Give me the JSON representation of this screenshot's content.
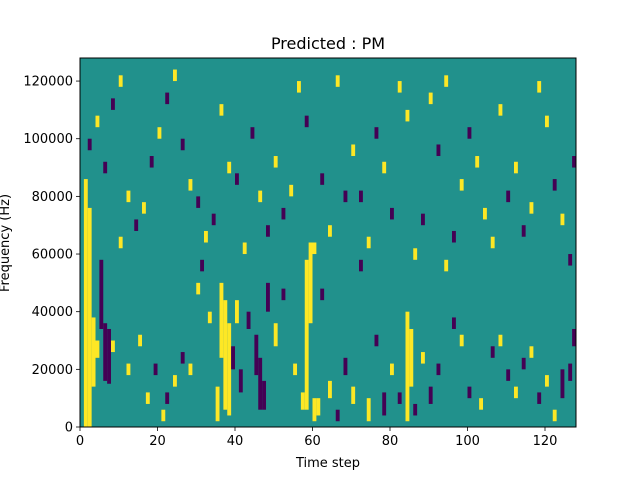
{
  "chart_data": {
    "type": "heatmap",
    "title": "Predicted : PM",
    "xlabel": "Time step",
    "ylabel": "Frequency (Hz)",
    "xlim": [
      0,
      128
    ],
    "ylim": [
      0,
      128000
    ],
    "x_ticks": [
      0,
      20,
      40,
      60,
      80,
      100,
      120
    ],
    "y_ticks": [
      0,
      20000,
      40000,
      60000,
      80000,
      100000,
      120000
    ],
    "x_tick_labels": [
      "0",
      "20",
      "40",
      "60",
      "80",
      "100",
      "120"
    ],
    "y_tick_labels": [
      "0",
      "20000",
      "40000",
      "60000",
      "80000",
      "100000",
      "120000"
    ],
    "colormap": "viridis",
    "levels": [
      -1,
      0,
      1
    ],
    "level_colors": {
      "-1": "#440154",
      "0": "#21918c",
      "1": "#fde725"
    },
    "background_level": 0,
    "grid": false,
    "cells": [
      {
        "t": 1,
        "f0": 0,
        "f1": 86000,
        "v": 1
      },
      {
        "t": 2,
        "f0": 0,
        "f1": 76000,
        "v": 1
      },
      {
        "t": 3,
        "f0": 14000,
        "f1": 38000,
        "v": 1
      },
      {
        "t": 4,
        "f0": 24000,
        "f1": 30000,
        "v": 1
      },
      {
        "t": 5,
        "f0": 34000,
        "f1": 58000,
        "v": -1
      },
      {
        "t": 6,
        "f0": 16000,
        "f1": 36000,
        "v": -1
      },
      {
        "t": 7,
        "f0": 15000,
        "f1": 34000,
        "v": -1
      },
      {
        "t": 8,
        "f0": 26000,
        "f1": 30000,
        "v": 1
      },
      {
        "t": 10,
        "f0": 62000,
        "f1": 66000,
        "v": 1
      },
      {
        "t": 12,
        "f0": 18000,
        "f1": 22000,
        "v": 1
      },
      {
        "t": 15,
        "f0": 28000,
        "f1": 32000,
        "v": 1
      },
      {
        "t": 17,
        "f0": 8000,
        "f1": 12000,
        "v": 1
      },
      {
        "t": 19,
        "f0": 18000,
        "f1": 22000,
        "v": -1
      },
      {
        "t": 21,
        "f0": 2000,
        "f1": 6000,
        "v": 1
      },
      {
        "t": 22,
        "f0": 8000,
        "f1": 12000,
        "v": -1
      },
      {
        "t": 24,
        "f0": 14000,
        "f1": 18000,
        "v": 1
      },
      {
        "t": 26,
        "f0": 22000,
        "f1": 26000,
        "v": -1
      },
      {
        "t": 28,
        "f0": 18000,
        "f1": 22000,
        "v": 1
      },
      {
        "t": 30,
        "f0": 46000,
        "f1": 50000,
        "v": 1
      },
      {
        "t": 31,
        "f0": 54000,
        "f1": 58000,
        "v": -1
      },
      {
        "t": 33,
        "f0": 36000,
        "f1": 40000,
        "v": 1
      },
      {
        "t": 35,
        "f0": 2000,
        "f1": 14000,
        "v": 1
      },
      {
        "t": 36,
        "f0": 24000,
        "f1": 50000,
        "v": 1
      },
      {
        "t": 37,
        "f0": 6000,
        "f1": 44000,
        "v": 1
      },
      {
        "t": 38,
        "f0": 4000,
        "f1": 36000,
        "v": 1
      },
      {
        "t": 39,
        "f0": 20000,
        "f1": 28000,
        "v": -1
      },
      {
        "t": 40,
        "f0": 36000,
        "f1": 44000,
        "v": 1
      },
      {
        "t": 41,
        "f0": 12000,
        "f1": 20000,
        "v": -1
      },
      {
        "t": 43,
        "f0": 34000,
        "f1": 40000,
        "v": -1
      },
      {
        "t": 45,
        "f0": 18000,
        "f1": 32000,
        "v": -1
      },
      {
        "t": 46,
        "f0": 6000,
        "f1": 24000,
        "v": -1
      },
      {
        "t": 47,
        "f0": 6000,
        "f1": 16000,
        "v": -1
      },
      {
        "t": 48,
        "f0": 40000,
        "f1": 50000,
        "v": -1
      },
      {
        "t": 50,
        "f0": 28000,
        "f1": 36000,
        "v": 1
      },
      {
        "t": 52,
        "f0": 44000,
        "f1": 48000,
        "v": -1
      },
      {
        "t": 55,
        "f0": 18000,
        "f1": 22000,
        "v": 1
      },
      {
        "t": 57,
        "f0": 6000,
        "f1": 12000,
        "v": 1
      },
      {
        "t": 58,
        "f0": 6000,
        "f1": 58000,
        "v": 1
      },
      {
        "t": 59,
        "f0": 36000,
        "f1": 64000,
        "v": 1
      },
      {
        "t": 60,
        "f0": 2000,
        "f1": 10000,
        "v": 1
      },
      {
        "t": 61,
        "f0": 4000,
        "f1": 10000,
        "v": 1
      },
      {
        "t": 62,
        "f0": 44000,
        "f1": 48000,
        "v": -1
      },
      {
        "t": 64,
        "f0": 10000,
        "f1": 16000,
        "v": 1
      },
      {
        "t": 66,
        "f0": 2000,
        "f1": 6000,
        "v": -1
      },
      {
        "t": 68,
        "f0": 18000,
        "f1": 24000,
        "v": -1
      },
      {
        "t": 70,
        "f0": 8000,
        "f1": 14000,
        "v": 1
      },
      {
        "t": 72,
        "f0": 54000,
        "f1": 58000,
        "v": -1
      },
      {
        "t": 74,
        "f0": 2000,
        "f1": 10000,
        "v": 1
      },
      {
        "t": 76,
        "f0": 28000,
        "f1": 32000,
        "v": -1
      },
      {
        "t": 78,
        "f0": 4000,
        "f1": 12000,
        "v": -1
      },
      {
        "t": 80,
        "f0": 18000,
        "f1": 22000,
        "v": 1
      },
      {
        "t": 82,
        "f0": 8000,
        "f1": 12000,
        "v": -1
      },
      {
        "t": 84,
        "f0": 2000,
        "f1": 40000,
        "v": 1
      },
      {
        "t": 85,
        "f0": 14000,
        "f1": 34000,
        "v": 1
      },
      {
        "t": 86,
        "f0": 4000,
        "f1": 8000,
        "v": -1
      },
      {
        "t": 88,
        "f0": 22000,
        "f1": 26000,
        "v": 1
      },
      {
        "t": 90,
        "f0": 8000,
        "f1": 14000,
        "v": -1
      },
      {
        "t": 92,
        "f0": 18000,
        "f1": 22000,
        "v": -1
      },
      {
        "t": 94,
        "f0": 54000,
        "f1": 58000,
        "v": 1
      },
      {
        "t": 96,
        "f0": 34000,
        "f1": 38000,
        "v": -1
      },
      {
        "t": 98,
        "f0": 28000,
        "f1": 32000,
        "v": 1
      },
      {
        "t": 100,
        "f0": 10000,
        "f1": 14000,
        "v": -1
      },
      {
        "t": 103,
        "f0": 6000,
        "f1": 10000,
        "v": 1
      },
      {
        "t": 106,
        "f0": 24000,
        "f1": 28000,
        "v": -1
      },
      {
        "t": 108,
        "f0": 28000,
        "f1": 32000,
        "v": 1
      },
      {
        "t": 110,
        "f0": 16000,
        "f1": 20000,
        "v": -1
      },
      {
        "t": 112,
        "f0": 10000,
        "f1": 14000,
        "v": 1
      },
      {
        "t": 114,
        "f0": 20000,
        "f1": 24000,
        "v": -1
      },
      {
        "t": 116,
        "f0": 24000,
        "f1": 28000,
        "v": 1
      },
      {
        "t": 118,
        "f0": 8000,
        "f1": 12000,
        "v": -1
      },
      {
        "t": 120,
        "f0": 14000,
        "f1": 18000,
        "v": 1
      },
      {
        "t": 122,
        "f0": 2000,
        "f1": 6000,
        "v": 1
      },
      {
        "t": 124,
        "f0": 10000,
        "f1": 20000,
        "v": -1
      },
      {
        "t": 126,
        "f0": 16000,
        "f1": 22000,
        "v": -1
      },
      {
        "t": 127,
        "f0": 28000,
        "f1": 34000,
        "v": -1
      },
      {
        "t": 2,
        "f0": 96000,
        "f1": 100000,
        "v": -1
      },
      {
        "t": 4,
        "f0": 104000,
        "f1": 108000,
        "v": 1
      },
      {
        "t": 6,
        "f0": 88000,
        "f1": 92000,
        "v": -1
      },
      {
        "t": 8,
        "f0": 110000,
        "f1": 114000,
        "v": -1
      },
      {
        "t": 10,
        "f0": 118000,
        "f1": 122000,
        "v": 1
      },
      {
        "t": 12,
        "f0": 78000,
        "f1": 82000,
        "v": 1
      },
      {
        "t": 14,
        "f0": 68000,
        "f1": 72000,
        "v": -1
      },
      {
        "t": 16,
        "f0": 74000,
        "f1": 78000,
        "v": 1
      },
      {
        "t": 18,
        "f0": 90000,
        "f1": 94000,
        "v": -1
      },
      {
        "t": 20,
        "f0": 100000,
        "f1": 104000,
        "v": 1
      },
      {
        "t": 22,
        "f0": 112000,
        "f1": 116000,
        "v": -1
      },
      {
        "t": 24,
        "f0": 120000,
        "f1": 124000,
        "v": 1
      },
      {
        "t": 26,
        "f0": 96000,
        "f1": 100000,
        "v": -1
      },
      {
        "t": 28,
        "f0": 82000,
        "f1": 86000,
        "v": 1
      },
      {
        "t": 30,
        "f0": 76000,
        "f1": 80000,
        "v": -1
      },
      {
        "t": 32,
        "f0": 64000,
        "f1": 68000,
        "v": 1
      },
      {
        "t": 34,
        "f0": 70000,
        "f1": 74000,
        "v": -1
      },
      {
        "t": 36,
        "f0": 108000,
        "f1": 112000,
        "v": 1
      },
      {
        "t": 38,
        "f0": 88000,
        "f1": 92000,
        "v": 1
      },
      {
        "t": 40,
        "f0": 84000,
        "f1": 88000,
        "v": -1
      },
      {
        "t": 42,
        "f0": 60000,
        "f1": 64000,
        "v": 1
      },
      {
        "t": 44,
        "f0": 100000,
        "f1": 104000,
        "v": -1
      },
      {
        "t": 46,
        "f0": 78000,
        "f1": 82000,
        "v": 1
      },
      {
        "t": 48,
        "f0": 66000,
        "f1": 70000,
        "v": -1
      },
      {
        "t": 50,
        "f0": 90000,
        "f1": 94000,
        "v": 1
      },
      {
        "t": 52,
        "f0": 72000,
        "f1": 76000,
        "v": -1
      },
      {
        "t": 54,
        "f0": 80000,
        "f1": 84000,
        "v": 1
      },
      {
        "t": 56,
        "f0": 116000,
        "f1": 120000,
        "v": 1
      },
      {
        "t": 58,
        "f0": 104000,
        "f1": 108000,
        "v": -1
      },
      {
        "t": 60,
        "f0": 60000,
        "f1": 64000,
        "v": 1
      },
      {
        "t": 62,
        "f0": 84000,
        "f1": 88000,
        "v": -1
      },
      {
        "t": 64,
        "f0": 66000,
        "f1": 70000,
        "v": 1
      },
      {
        "t": 66,
        "f0": 118000,
        "f1": 122000,
        "v": 1
      },
      {
        "t": 68,
        "f0": 78000,
        "f1": 82000,
        "v": -1
      },
      {
        "t": 70,
        "f0": 94000,
        "f1": 98000,
        "v": 1
      },
      {
        "t": 72,
        "f0": 78000,
        "f1": 82000,
        "v": -1
      },
      {
        "t": 74,
        "f0": 62000,
        "f1": 66000,
        "v": 1
      },
      {
        "t": 76,
        "f0": 100000,
        "f1": 104000,
        "v": -1
      },
      {
        "t": 78,
        "f0": 88000,
        "f1": 92000,
        "v": 1
      },
      {
        "t": 80,
        "f0": 72000,
        "f1": 76000,
        "v": -1
      },
      {
        "t": 82,
        "f0": 116000,
        "f1": 120000,
        "v": 1
      },
      {
        "t": 84,
        "f0": 106000,
        "f1": 110000,
        "v": 1
      },
      {
        "t": 86,
        "f0": 58000,
        "f1": 62000,
        "v": 1
      },
      {
        "t": 88,
        "f0": 70000,
        "f1": 74000,
        "v": -1
      },
      {
        "t": 90,
        "f0": 112000,
        "f1": 116000,
        "v": 1
      },
      {
        "t": 92,
        "f0": 94000,
        "f1": 98000,
        "v": -1
      },
      {
        "t": 94,
        "f0": 118000,
        "f1": 122000,
        "v": 1
      },
      {
        "t": 96,
        "f0": 64000,
        "f1": 68000,
        "v": -1
      },
      {
        "t": 98,
        "f0": 82000,
        "f1": 86000,
        "v": 1
      },
      {
        "t": 100,
        "f0": 100000,
        "f1": 104000,
        "v": -1
      },
      {
        "t": 102,
        "f0": 90000,
        "f1": 94000,
        "v": 1
      },
      {
        "t": 104,
        "f0": 72000,
        "f1": 76000,
        "v": 1
      },
      {
        "t": 106,
        "f0": 62000,
        "f1": 66000,
        "v": 1
      },
      {
        "t": 108,
        "f0": 108000,
        "f1": 112000,
        "v": 1
      },
      {
        "t": 110,
        "f0": 78000,
        "f1": 82000,
        "v": -1
      },
      {
        "t": 112,
        "f0": 88000,
        "f1": 92000,
        "v": 1
      },
      {
        "t": 114,
        "f0": 66000,
        "f1": 70000,
        "v": -1
      },
      {
        "t": 116,
        "f0": 74000,
        "f1": 78000,
        "v": 1
      },
      {
        "t": 118,
        "f0": 116000,
        "f1": 120000,
        "v": 1
      },
      {
        "t": 120,
        "f0": 104000,
        "f1": 108000,
        "v": 1
      },
      {
        "t": 122,
        "f0": 82000,
        "f1": 86000,
        "v": -1
      },
      {
        "t": 124,
        "f0": 70000,
        "f1": 74000,
        "v": 1
      },
      {
        "t": 126,
        "f0": 56000,
        "f1": 60000,
        "v": -1
      },
      {
        "t": 127,
        "f0": 90000,
        "f1": 94000,
        "v": -1
      }
    ]
  }
}
